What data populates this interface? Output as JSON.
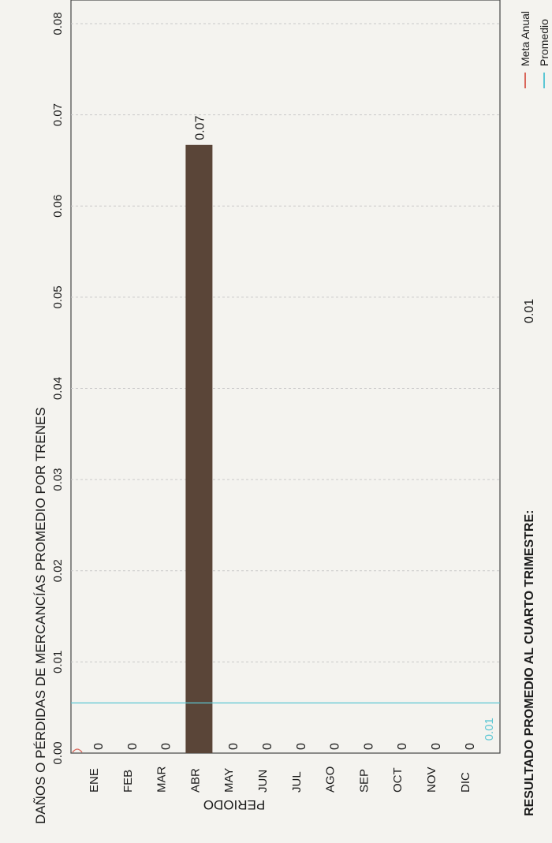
{
  "chart_data": {
    "type": "bar",
    "title": "",
    "ylabel": "DAÑOS O PÉRDIDAS DE MERCANCÍAS PROMEDIO POR TRENES",
    "xlabel": "PERIODO",
    "categories": [
      "ENE",
      "FEB",
      "MAR",
      "ABR",
      "MAY",
      "JUN",
      "JUL",
      "AGO",
      "SEP",
      "OCT",
      "NOV",
      "DIC"
    ],
    "values": [
      0,
      0,
      0,
      0.0667,
      0,
      0,
      0,
      0,
      0,
      0,
      0,
      0
    ],
    "value_labels": [
      "0",
      "0",
      "0",
      "0.07",
      "0",
      "0",
      "0",
      "0",
      "0",
      "0",
      "0",
      "0"
    ],
    "ylim": [
      0,
      0.085
    ],
    "yticks": [
      0,
      0.01,
      0.02,
      0.03,
      0.04,
      0.05,
      0.06,
      0.07,
      0.08
    ],
    "ytick_labels": [
      "0.00",
      "0.01",
      "0.02",
      "0.03",
      "0.04",
      "0.05",
      "0.06",
      "0.07",
      "0.08"
    ],
    "grid": true,
    "bar_color": "#5a4538",
    "lines": [
      {
        "name": "Meta Anual",
        "value": 0,
        "color": "#d9665a"
      },
      {
        "name": "Promedio",
        "value": 0.0055,
        "label": "0.01",
        "color": "#5cc7d4"
      }
    ],
    "legend_position": "right",
    "result": {
      "label": "RESULTADO PROMEDIO AL CUARTO TRIMESTRE:",
      "value": "0.01"
    }
  }
}
